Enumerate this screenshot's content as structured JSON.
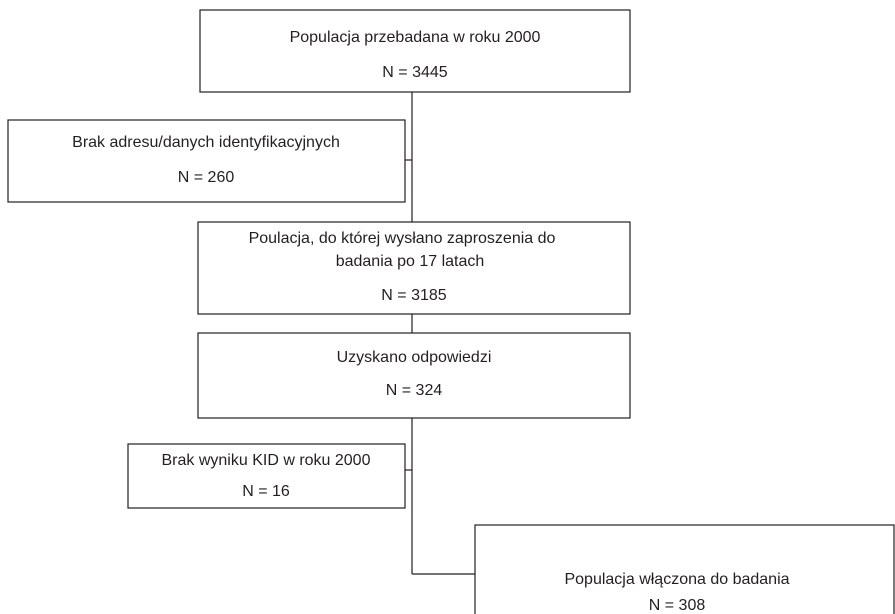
{
  "nodes": [
    {
      "lines": [
        "Populacja przebadana w roku 2000"
      ],
      "count": "N = 3445"
    },
    {
      "lines": [
        "Brak adresu/danych identyfikacyjnych"
      ],
      "count": "N = 260"
    },
    {
      "lines": [
        "Poulacja, do której wysłano zaproszenia do",
        "badania po 17 latach"
      ],
      "count": "N = 3185"
    },
    {
      "lines": [
        "Uzyskano odpowiedzi"
      ],
      "count": "N = 324"
    },
    {
      "lines": [
        "Brak wyniku KID w roku 2000"
      ],
      "count": "N = 16"
    },
    {
      "lines": [
        "Populacja włączona do badania"
      ],
      "count": "N = 308"
    }
  ]
}
